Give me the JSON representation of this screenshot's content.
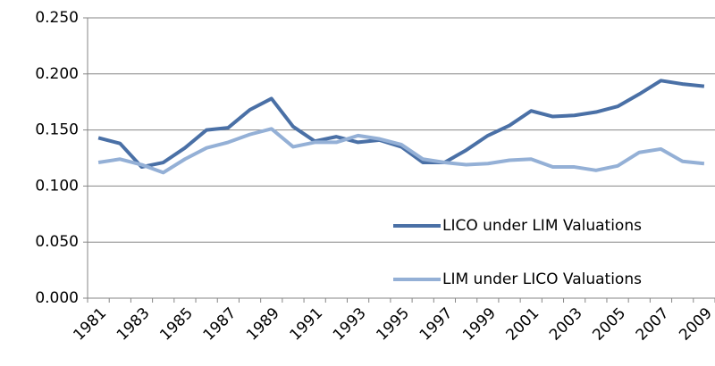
{
  "chart_data": {
    "type": "line",
    "categories": [
      "1981",
      null,
      "1983",
      null,
      "1985",
      null,
      "1987",
      null,
      "1989",
      null,
      "1991",
      null,
      "1993",
      null,
      "1995",
      null,
      "1997",
      null,
      "1999",
      null,
      "2001",
      null,
      "2003",
      null,
      "2005",
      null,
      "2007",
      null,
      "2009"
    ],
    "series": [
      {
        "name": "LICO under LIM Valuations",
        "color": "#4a70a6",
        "values": [
          0.143,
          0.138,
          0.117,
          0.121,
          0.134,
          0.15,
          0.152,
          0.168,
          0.178,
          0.153,
          0.14,
          0.144,
          0.139,
          0.141,
          0.135,
          0.121,
          0.121,
          0.132,
          0.145,
          0.154,
          0.167,
          0.162,
          0.163,
          0.166,
          0.171,
          0.182,
          0.194,
          0.191,
          0.189
        ]
      },
      {
        "name": "LIM under LICO Valuations",
        "color": "#94b0d6",
        "values": [
          0.121,
          0.124,
          0.119,
          0.112,
          0.124,
          0.134,
          0.139,
          0.146,
          0.151,
          0.135,
          0.139,
          0.139,
          0.145,
          0.142,
          0.137,
          0.124,
          0.121,
          0.119,
          0.12,
          0.123,
          0.124,
          0.117,
          0.117,
          0.114,
          0.118,
          0.13,
          0.133,
          0.122,
          0.12
        ]
      }
    ],
    "ylim": [
      0,
      0.25
    ],
    "yticks": [
      {
        "value": 0,
        "label": "0.000"
      },
      {
        "value": 0.05,
        "label": "0.050"
      },
      {
        "value": 0.1,
        "label": "0.100"
      },
      {
        "value": 0.15,
        "label": "0.150"
      },
      {
        "value": 0.2,
        "label": "0.200"
      },
      {
        "value": 0.25,
        "label": "0.250"
      }
    ],
    "grid": true,
    "legend": "right"
  }
}
